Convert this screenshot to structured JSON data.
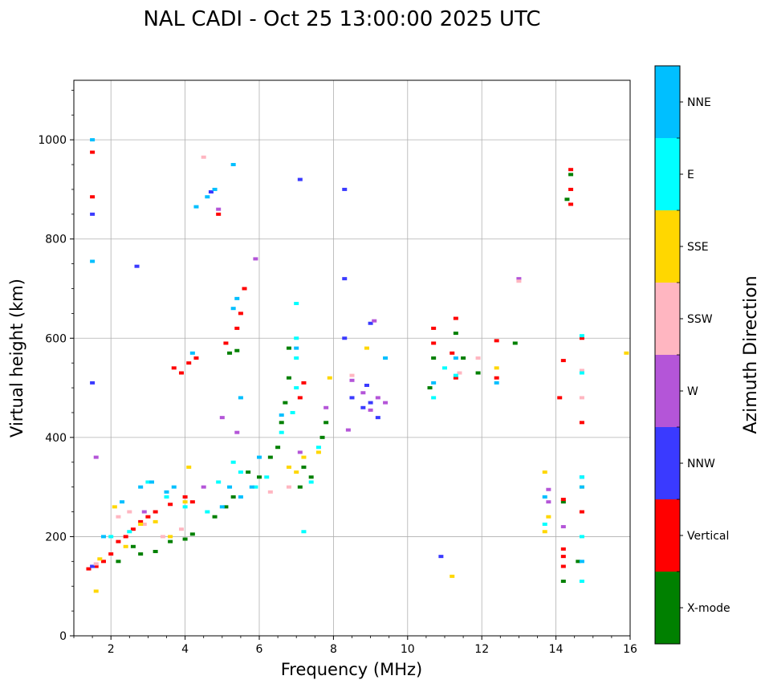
{
  "chart_data": {
    "type": "scatter",
    "title": "NAL CADI - Oct 25 13:00:00 2025 UTC",
    "xlabel": "Frequency (MHz)",
    "ylabel": "Virtual height (km)",
    "xlim": [
      1,
      16
    ],
    "ylim": [
      0,
      1120
    ],
    "xticks": [
      2,
      4,
      6,
      8,
      10,
      12,
      14,
      16
    ],
    "yticks": [
      0,
      200,
      400,
      600,
      800,
      1000
    ],
    "grid": true,
    "colorbar": {
      "label": "Azimuth Direction",
      "categories": [
        "X-mode",
        "Vertical",
        "NNW",
        "W",
        "SSW",
        "SSE",
        "E",
        "NNE"
      ],
      "colors": [
        "#008000",
        "#ff0000",
        "#3a3aff",
        "#b455d8",
        "#ffb6c1",
        "#ffd700",
        "#00ffff",
        "#00bfff"
      ]
    },
    "series": [
      {
        "name": "X-mode",
        "points": [
          [
            2.2,
            150
          ],
          [
            2.6,
            180
          ],
          [
            2.8,
            165
          ],
          [
            3.2,
            170
          ],
          [
            3.6,
            190
          ],
          [
            4.0,
            195
          ],
          [
            4.2,
            205
          ],
          [
            4.8,
            240
          ],
          [
            5.1,
            260
          ],
          [
            5.3,
            280
          ],
          [
            5.2,
            570
          ],
          [
            5.4,
            575
          ],
          [
            5.7,
            330
          ],
          [
            6.0,
            320
          ],
          [
            6.3,
            360
          ],
          [
            6.5,
            380
          ],
          [
            6.6,
            430
          ],
          [
            6.7,
            470
          ],
          [
            6.8,
            520
          ],
          [
            6.8,
            580
          ],
          [
            7.1,
            300
          ],
          [
            7.2,
            340
          ],
          [
            7.4,
            320
          ],
          [
            7.7,
            400
          ],
          [
            7.8,
            430
          ],
          [
            10.6,
            500
          ],
          [
            10.7,
            560
          ],
          [
            11.3,
            610
          ],
          [
            11.5,
            560
          ],
          [
            11.9,
            530
          ],
          [
            12.9,
            590
          ],
          [
            14.2,
            110
          ],
          [
            14.2,
            270
          ],
          [
            14.3,
            880
          ],
          [
            14.4,
            930
          ],
          [
            14.6,
            150
          ]
        ]
      },
      {
        "name": "Vertical",
        "points": [
          [
            1.4,
            135
          ],
          [
            1.6,
            140
          ],
          [
            1.8,
            150
          ],
          [
            2.0,
            165
          ],
          [
            2.2,
            190
          ],
          [
            2.4,
            200
          ],
          [
            2.6,
            215
          ],
          [
            2.8,
            230
          ],
          [
            3.0,
            240
          ],
          [
            3.2,
            250
          ],
          [
            3.6,
            265
          ],
          [
            4.0,
            280
          ],
          [
            4.2,
            270
          ],
          [
            3.7,
            540
          ],
          [
            3.9,
            530
          ],
          [
            4.1,
            550
          ],
          [
            4.3,
            560
          ],
          [
            1.5,
            975
          ],
          [
            1.5,
            885
          ],
          [
            4.9,
            850
          ],
          [
            5.1,
            590
          ],
          [
            5.4,
            620
          ],
          [
            5.5,
            650
          ],
          [
            5.6,
            700
          ],
          [
            7.1,
            480
          ],
          [
            7.2,
            510
          ],
          [
            10.7,
            590
          ],
          [
            10.7,
            620
          ],
          [
            11.2,
            570
          ],
          [
            11.3,
            520
          ],
          [
            11.3,
            640
          ],
          [
            12.4,
            520
          ],
          [
            12.4,
            595
          ],
          [
            14.1,
            480
          ],
          [
            14.2,
            140
          ],
          [
            14.2,
            160
          ],
          [
            14.2,
            175
          ],
          [
            14.2,
            275
          ],
          [
            14.2,
            555
          ],
          [
            14.4,
            900
          ],
          [
            14.4,
            940
          ],
          [
            14.4,
            870
          ],
          [
            14.7,
            430
          ],
          [
            14.7,
            600
          ],
          [
            14.7,
            250
          ]
        ]
      },
      {
        "name": "NNW",
        "points": [
          [
            1.5,
            140
          ],
          [
            1.5,
            850
          ],
          [
            1.5,
            510
          ],
          [
            2.7,
            745
          ],
          [
            4.7,
            895
          ],
          [
            7.1,
            920
          ],
          [
            8.3,
            720
          ],
          [
            8.3,
            600
          ],
          [
            8.3,
            900
          ],
          [
            8.5,
            480
          ],
          [
            8.8,
            460
          ],
          [
            8.9,
            505
          ],
          [
            9.0,
            470
          ],
          [
            9.2,
            440
          ],
          [
            9.0,
            630
          ],
          [
            10.9,
            160
          ],
          [
            14.7,
            320
          ]
        ]
      },
      {
        "name": "W",
        "points": [
          [
            1.6,
            360
          ],
          [
            2.9,
            250
          ],
          [
            4.5,
            300
          ],
          [
            4.9,
            860
          ],
          [
            5.0,
            440
          ],
          [
            5.4,
            410
          ],
          [
            5.9,
            760
          ],
          [
            7.1,
            370
          ],
          [
            7.8,
            460
          ],
          [
            8.4,
            415
          ],
          [
            8.5,
            515
          ],
          [
            8.8,
            490
          ],
          [
            9.0,
            455
          ],
          [
            9.2,
            480
          ],
          [
            9.4,
            470
          ],
          [
            9.1,
            635
          ],
          [
            13.0,
            720
          ],
          [
            13.8,
            270
          ],
          [
            13.8,
            295
          ],
          [
            14.2,
            220
          ]
        ]
      },
      {
        "name": "SSW",
        "points": [
          [
            1.6,
            145
          ],
          [
            2.2,
            240
          ],
          [
            2.5,
            250
          ],
          [
            2.9,
            225
          ],
          [
            3.4,
            200
          ],
          [
            3.9,
            215
          ],
          [
            4.5,
            965
          ],
          [
            6.3,
            290
          ],
          [
            6.8,
            300
          ],
          [
            8.5,
            525
          ],
          [
            11.4,
            530
          ],
          [
            11.9,
            560
          ],
          [
            13.0,
            715
          ],
          [
            14.7,
            480
          ],
          [
            14.7,
            535
          ]
        ]
      },
      {
        "name": "SSE",
        "points": [
          [
            1.6,
            90
          ],
          [
            1.7,
            155
          ],
          [
            2.1,
            260
          ],
          [
            2.4,
            180
          ],
          [
            2.8,
            225
          ],
          [
            3.2,
            230
          ],
          [
            3.6,
            200
          ],
          [
            4.0,
            270
          ],
          [
            4.1,
            340
          ],
          [
            6.8,
            340
          ],
          [
            7.0,
            330
          ],
          [
            7.2,
            360
          ],
          [
            7.6,
            370
          ],
          [
            7.9,
            520
          ],
          [
            8.9,
            580
          ],
          [
            11.2,
            120
          ],
          [
            12.4,
            540
          ],
          [
            13.7,
            210
          ],
          [
            13.7,
            330
          ],
          [
            13.8,
            240
          ],
          [
            14.7,
            300
          ],
          [
            15.9,
            570
          ]
        ]
      },
      {
        "name": "E",
        "points": [
          [
            2.0,
            200
          ],
          [
            2.5,
            210
          ],
          [
            3.0,
            310
          ],
          [
            3.5,
            280
          ],
          [
            4.0,
            260
          ],
          [
            4.6,
            250
          ],
          [
            4.9,
            310
          ],
          [
            5.3,
            350
          ],
          [
            5.5,
            330
          ],
          [
            5.9,
            300
          ],
          [
            6.2,
            320
          ],
          [
            6.6,
            410
          ],
          [
            6.9,
            450
          ],
          [
            7.0,
            500
          ],
          [
            7.0,
            560
          ],
          [
            7.0,
            600
          ],
          [
            7.0,
            670
          ],
          [
            7.2,
            210
          ],
          [
            7.4,
            310
          ],
          [
            7.6,
            380
          ],
          [
            10.7,
            480
          ],
          [
            11.0,
            540
          ],
          [
            11.3,
            525
          ],
          [
            13.7,
            225
          ],
          [
            14.7,
            110
          ],
          [
            14.7,
            200
          ],
          [
            14.7,
            320
          ],
          [
            14.7,
            530
          ],
          [
            14.7,
            605
          ]
        ]
      },
      {
        "name": "NNE",
        "points": [
          [
            1.5,
            1000
          ],
          [
            1.5,
            755
          ],
          [
            1.8,
            200
          ],
          [
            2.3,
            270
          ],
          [
            2.8,
            300
          ],
          [
            3.1,
            310
          ],
          [
            3.5,
            290
          ],
          [
            3.7,
            300
          ],
          [
            4.2,
            570
          ],
          [
            4.3,
            865
          ],
          [
            4.6,
            885
          ],
          [
            4.8,
            900
          ],
          [
            5.0,
            260
          ],
          [
            5.2,
            300
          ],
          [
            5.3,
            950
          ],
          [
            5.5,
            280
          ],
          [
            5.5,
            480
          ],
          [
            5.3,
            660
          ],
          [
            5.4,
            680
          ],
          [
            5.8,
            300
          ],
          [
            6.0,
            360
          ],
          [
            6.6,
            445
          ],
          [
            7.0,
            580
          ],
          [
            9.4,
            560
          ],
          [
            10.7,
            510
          ],
          [
            11.3,
            560
          ],
          [
            12.4,
            510
          ],
          [
            13.7,
            280
          ],
          [
            14.7,
            150
          ],
          [
            14.7,
            300
          ]
        ]
      }
    ]
  }
}
